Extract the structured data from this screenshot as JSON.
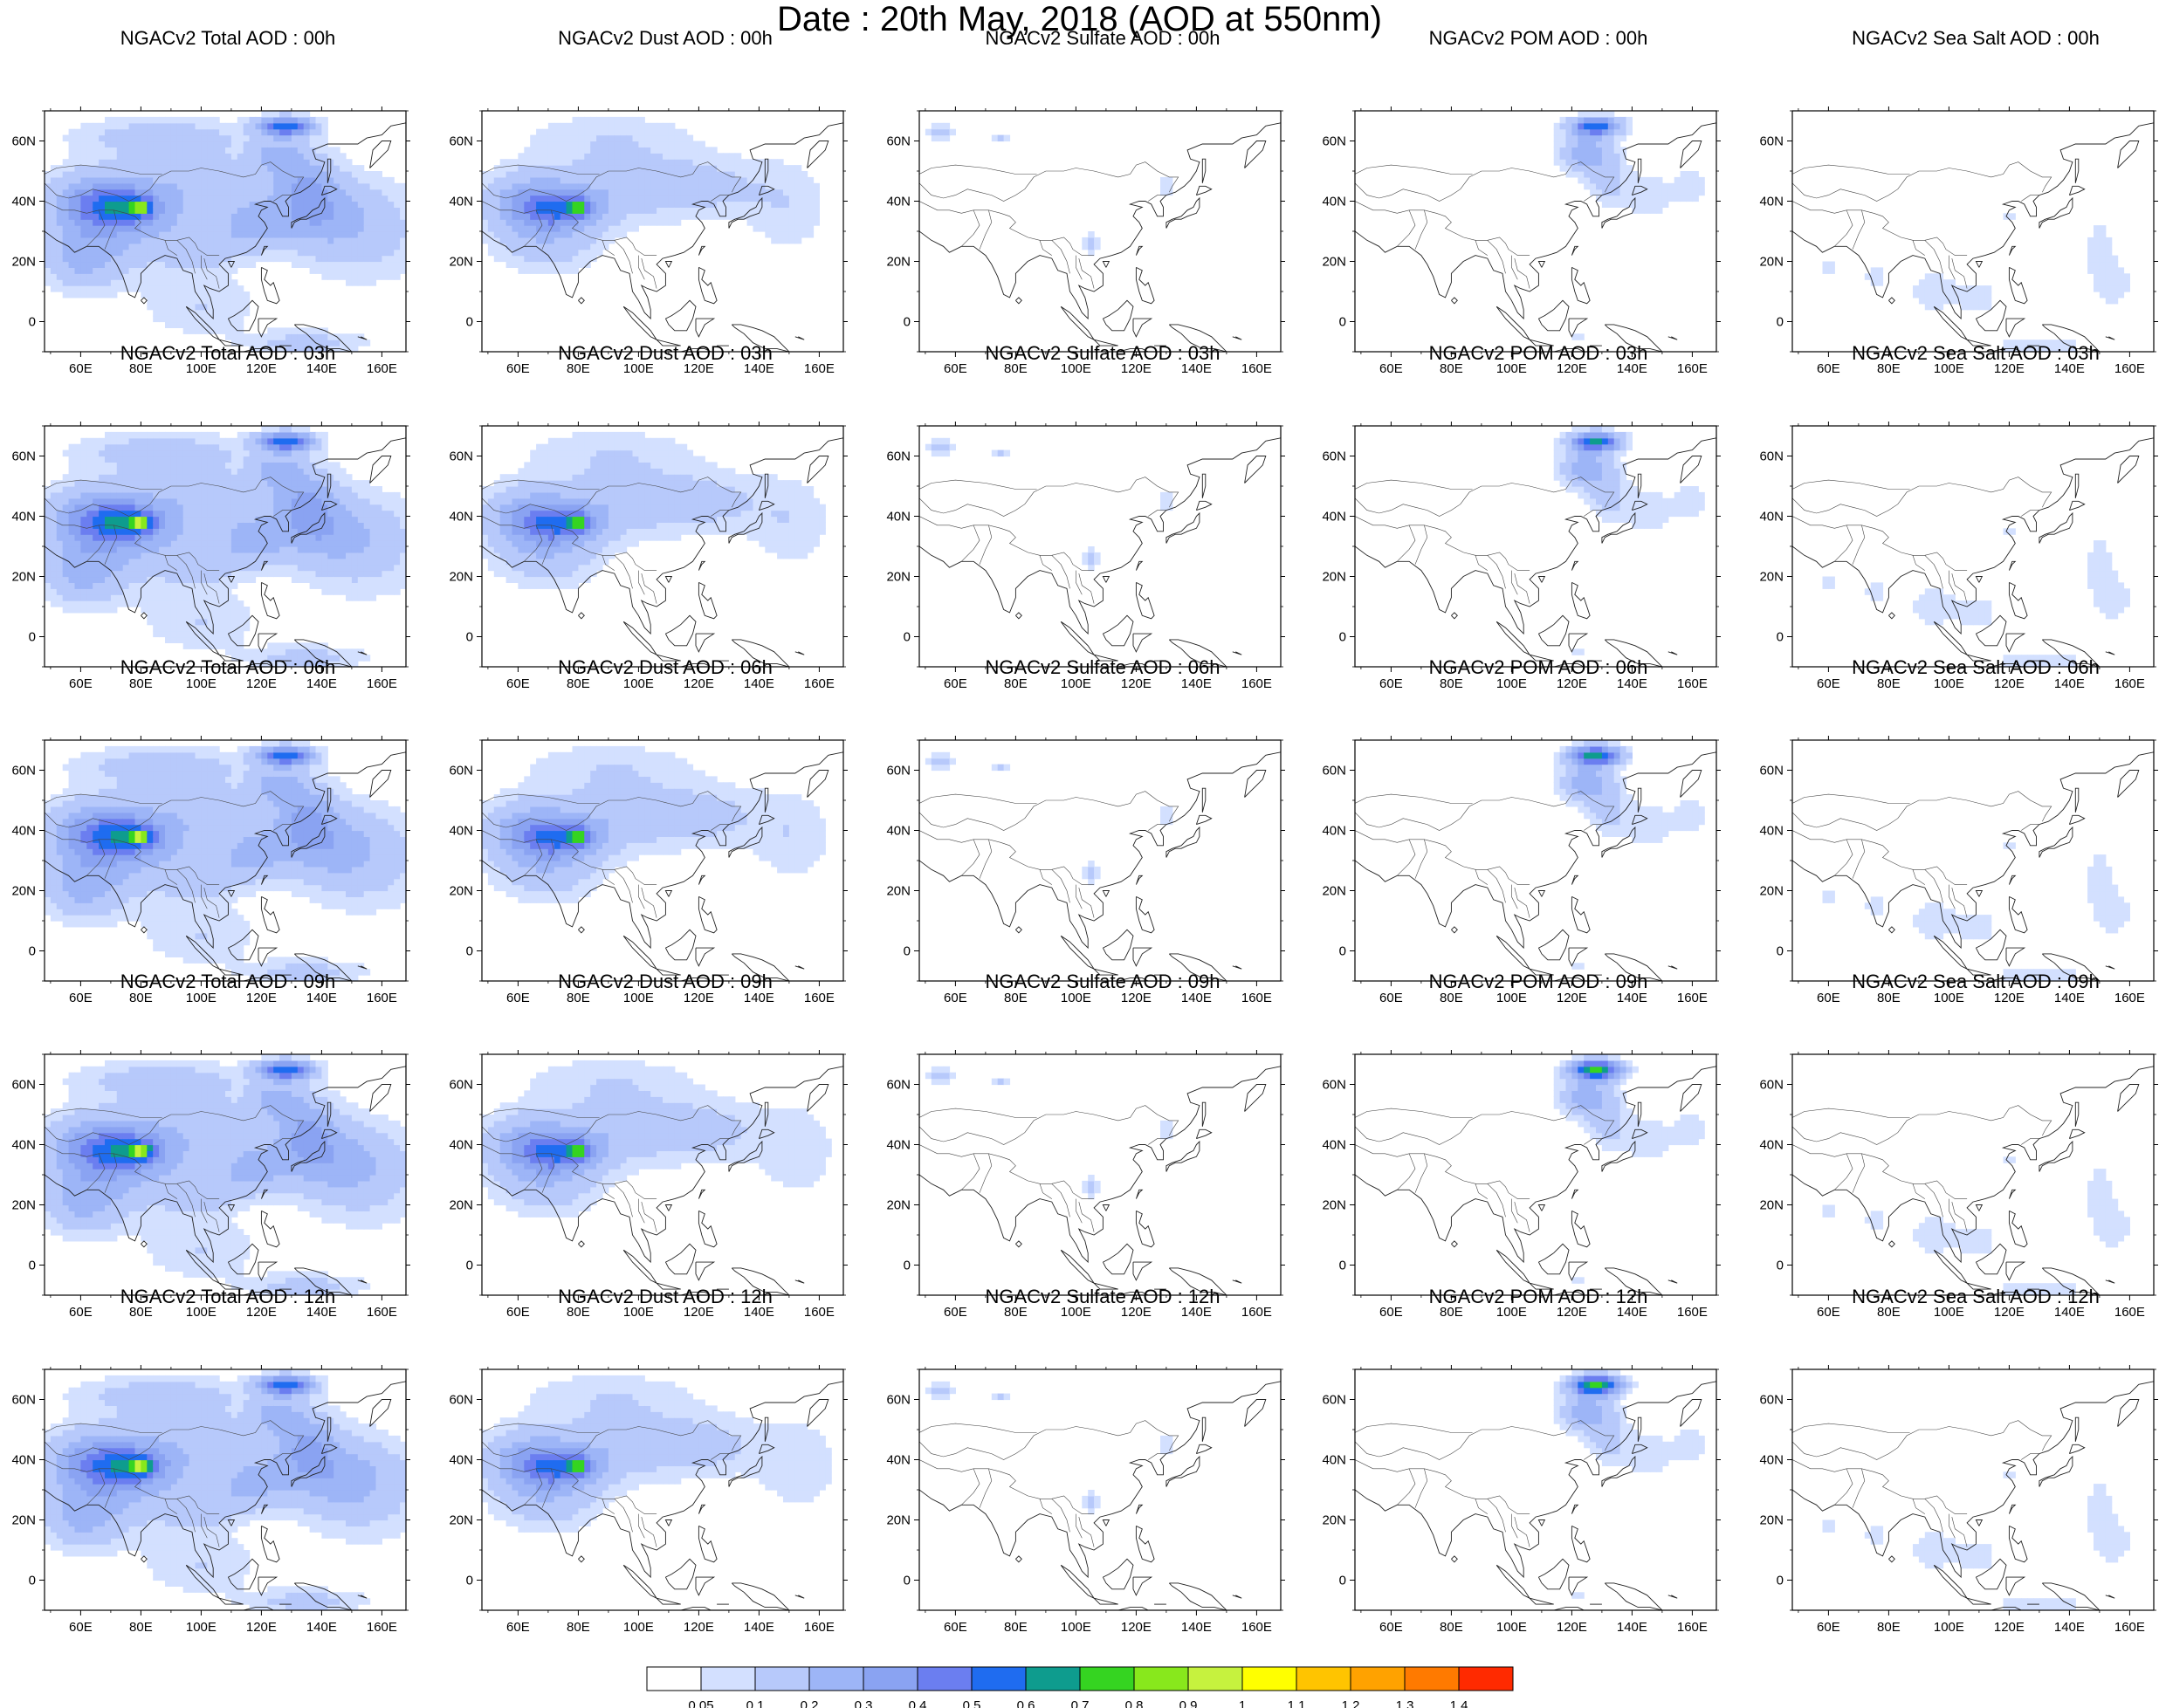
{
  "title": "Date : 20th May, 2018 (AOD at 550nm)",
  "map_axes": {
    "lon_min": 48,
    "lon_max": 168,
    "lat_min": -10,
    "lat_max": 70,
    "x_ticks": [
      60,
      80,
      100,
      120,
      140,
      160
    ],
    "x_tick_labels": [
      "60E",
      "80E",
      "100E",
      "120E",
      "140E",
      "160E"
    ],
    "y_ticks": [
      0,
      20,
      40,
      60
    ],
    "y_tick_labels": [
      "0",
      "20N",
      "40N",
      "60N"
    ]
  },
  "species": [
    "Total",
    "Dust",
    "Sulfate",
    "POM",
    "SeaSalt"
  ],
  "hours": [
    "00h",
    "03h",
    "06h",
    "09h",
    "12h"
  ],
  "panels": [
    [
      {
        "title": "NGACv2 Total AOD : 00h"
      },
      {
        "title": "NGACv2 Dust AOD : 00h"
      },
      {
        "title": "NGACv2 Sulfate AOD : 00h"
      },
      {
        "title": "NGACv2 POM AOD : 00h"
      },
      {
        "title": "NGACv2 Sea Salt AOD : 00h"
      }
    ],
    [
      {
        "title": "NGACv2 Total AOD : 03h"
      },
      {
        "title": "NGACv2 Dust AOD : 03h"
      },
      {
        "title": "NGACv2 Sulfate AOD : 03h"
      },
      {
        "title": "NGACv2 POM AOD : 03h"
      },
      {
        "title": "NGACv2 Sea Salt AOD : 03h"
      }
    ],
    [
      {
        "title": "NGACv2 Total AOD : 06h"
      },
      {
        "title": "NGACv2 Dust AOD : 06h"
      },
      {
        "title": "NGACv2 Sulfate AOD : 06h"
      },
      {
        "title": "NGACv2 POM AOD : 06h"
      },
      {
        "title": "NGACv2 Sea Salt AOD : 06h"
      }
    ],
    [
      {
        "title": "NGACv2 Total AOD : 09h"
      },
      {
        "title": "NGACv2 Dust AOD : 09h"
      },
      {
        "title": "NGACv2 Sulfate AOD : 09h"
      },
      {
        "title": "NGACv2 POM AOD : 09h"
      },
      {
        "title": "NGACv2 Sea Salt  AOD : 09h"
      }
    ],
    [
      {
        "title": "NGACv2 Total AOD  : 12h"
      },
      {
        "title": "NGACv2 Dust AOD : 12h"
      },
      {
        "title": "NGACv2 Sulfate AOD : 12h"
      },
      {
        "title": "NGACv2 POM  AOD : 12h"
      },
      {
        "title": "NGACv2 Sea Salt  AOD : 12h"
      }
    ]
  ],
  "colorbar": {
    "labels": [
      "0.05",
      "0.1",
      "0.2",
      "0.3",
      "0.4",
      "0.5",
      "0.6",
      "0.7",
      "0.8",
      "0.9",
      "1",
      "1.1",
      "1.2",
      "1.3",
      "1.4"
    ],
    "colors": [
      "#ffffff",
      "#d3e0ff",
      "#b7c9fb",
      "#9db5f7",
      "#8aa3f2",
      "#6b7ef0",
      "#1f6cf0",
      "#0e9c8e",
      "#35d421",
      "#88e81c",
      "#c6f23e",
      "#ffff00",
      "#ffc400",
      "#ffa200",
      "#ff7a00",
      "#ff2a00"
    ]
  }
}
